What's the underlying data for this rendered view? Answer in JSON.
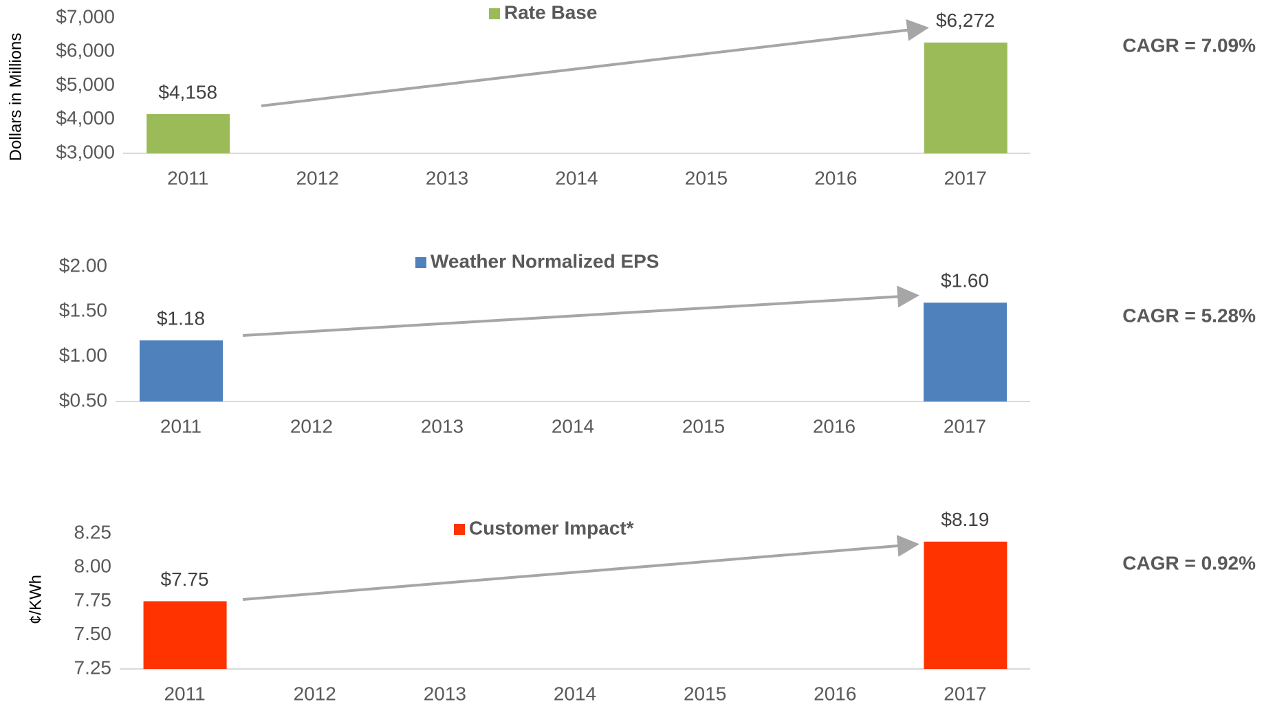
{
  "chart_data": [
    {
      "type": "bar",
      "ylabel": "Dollars in Millions",
      "categories": [
        "2011",
        "2012",
        "2013",
        "2014",
        "2015",
        "2016",
        "2017"
      ],
      "series": [
        {
          "name": "Rate Base",
          "color": "#9bbb59",
          "values": [
            4158,
            null,
            null,
            null,
            null,
            null,
            6272
          ],
          "value_labels": [
            "$4,158",
            null,
            null,
            null,
            null,
            null,
            "$6,272"
          ]
        }
      ],
      "ylim": [
        3000,
        7000
      ],
      "yticks": [
        {
          "value": 3000,
          "label": "$3,000"
        },
        {
          "value": 4000,
          "label": "$4,000"
        },
        {
          "value": 5000,
          "label": "$5,000"
        },
        {
          "value": 6000,
          "label": "$6,000"
        },
        {
          "value": 7000,
          "label": "$7,000"
        }
      ],
      "annotation": "CAGR = 7.09%",
      "legend": "top"
    },
    {
      "type": "bar",
      "categories": [
        "2011",
        "2012",
        "2013",
        "2014",
        "2015",
        "2016",
        "2017"
      ],
      "series": [
        {
          "name": "Weather Normalized EPS",
          "color": "#4f81bd",
          "values": [
            1.18,
            null,
            null,
            null,
            null,
            null,
            1.6
          ],
          "value_labels": [
            "$1.18",
            null,
            null,
            null,
            null,
            null,
            "$1.60"
          ]
        }
      ],
      "ylim": [
        0.5,
        2.0
      ],
      "yticks": [
        {
          "value": 0.5,
          "label": "$0.50"
        },
        {
          "value": 1.0,
          "label": "$1.00"
        },
        {
          "value": 1.5,
          "label": "$1.50"
        },
        {
          "value": 2.0,
          "label": "$2.00"
        }
      ],
      "annotation": "CAGR = 5.28%",
      "legend": "top"
    },
    {
      "type": "bar",
      "ylabel": "¢/KWh",
      "categories": [
        "2011",
        "2012",
        "2013",
        "2014",
        "2015",
        "2016",
        "2017"
      ],
      "series": [
        {
          "name": "Customer Impact*",
          "color": "#ff3300",
          "values": [
            7.75,
            null,
            null,
            null,
            null,
            null,
            8.19
          ],
          "value_labels": [
            "$7.75",
            null,
            null,
            null,
            null,
            null,
            "$8.19"
          ]
        }
      ],
      "ylim": [
        7.25,
        8.25
      ],
      "yticks": [
        7.25,
        {
          "value": 7.5,
          "label": "7.50"
        },
        7.75,
        {
          "value": 8.0,
          "label": "8.00"
        },
        8.25
      ],
      "annotation": "CAGR = 0.92%",
      "legend": "top"
    }
  ]
}
